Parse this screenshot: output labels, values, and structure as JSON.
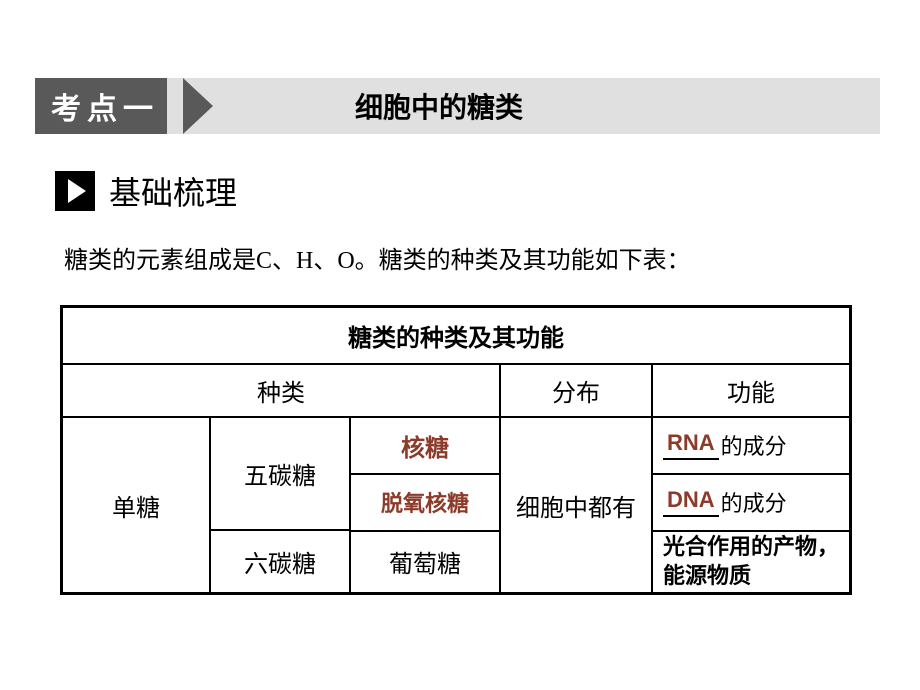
{
  "header": {
    "tag": "考点一",
    "title": "细胞中的糖类"
  },
  "subheading": "基础梳理",
  "intro": "糖类的元素组成是C、H、O。糖类的种类及其功能如下表：",
  "table": {
    "title": "糖类的种类及其功能",
    "headers": {
      "kind": "种类",
      "dist": "分布",
      "func": "功能"
    },
    "main_cat": "单糖",
    "sub5": "五碳糖",
    "sub6": "六碳糖",
    "name1": "核糖",
    "name2": "脱氧核糖",
    "name3": "葡萄糖",
    "dist": "细胞中都有",
    "fn1_blank": "RNA",
    "fn1_suffix": "的成分",
    "fn2_blank": "DNA",
    "fn2_suffix": "的成分",
    "fn3": "光合作用的产物，能源物质"
  },
  "colors": {
    "header_bg": "#e0e0e0",
    "tag_bg": "#595959",
    "tag_fg": "#ffffff",
    "highlight": "#8c3a2a",
    "text": "#000000",
    "page_bg": "#ffffff"
  },
  "fonts": {
    "serif": "SimSun",
    "sans": "SimHei",
    "title_size": 28,
    "body_size": 24
  }
}
